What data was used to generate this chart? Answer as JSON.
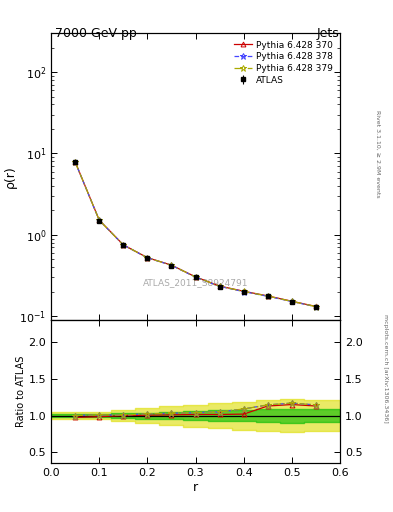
{
  "title": "7000 GeV pp",
  "title_right": "Jets",
  "watermark": "ATLAS_2011_S8924791",
  "rivet_text": "Rivet 3.1.10, ≥ 2.9M events",
  "arxiv_text": "mcplots.cern.ch [arXiv:1306.3436]",
  "ylabel_main": "ρ(r)",
  "ylabel_ratio": "Ratio to ATLAS",
  "xlabel": "r",
  "x_data": [
    0.05,
    0.1,
    0.15,
    0.2,
    0.25,
    0.3,
    0.35,
    0.4,
    0.45,
    0.5,
    0.55
  ],
  "atlas_y": [
    7.8,
    1.5,
    0.75,
    0.52,
    0.42,
    0.3,
    0.23,
    0.2,
    0.175,
    0.15,
    0.13
  ],
  "atlas_yerr_lo": [
    0.3,
    0.06,
    0.03,
    0.025,
    0.02,
    0.015,
    0.012,
    0.01,
    0.009,
    0.008,
    0.007
  ],
  "atlas_yerr_hi": [
    0.3,
    0.06,
    0.03,
    0.025,
    0.02,
    0.015,
    0.012,
    0.01,
    0.009,
    0.008,
    0.007
  ],
  "pythia370_y": [
    7.9,
    1.52,
    0.755,
    0.525,
    0.425,
    0.305,
    0.235,
    0.203,
    0.178,
    0.153,
    0.132
  ],
  "pythia378_y": [
    7.85,
    1.515,
    0.752,
    0.523,
    0.423,
    0.303,
    0.233,
    0.201,
    0.176,
    0.152,
    0.131
  ],
  "pythia379_y": [
    7.87,
    1.517,
    0.753,
    0.524,
    0.424,
    0.304,
    0.234,
    0.202,
    0.177,
    0.1525,
    0.1315
  ],
  "ratio370_y": [
    0.975,
    0.985,
    1.0,
    1.005,
    1.01,
    1.015,
    1.015,
    1.02,
    1.13,
    1.15,
    1.13
  ],
  "ratio378_y": [
    1.0,
    1.01,
    1.005,
    1.025,
    1.03,
    1.04,
    1.05,
    1.09,
    1.145,
    1.17,
    1.145
  ],
  "ratio379_y": [
    1.0,
    1.01,
    1.005,
    1.025,
    1.03,
    1.04,
    1.05,
    1.09,
    1.145,
    1.17,
    1.145
  ],
  "x_edges": [
    0.0,
    0.075,
    0.125,
    0.175,
    0.225,
    0.275,
    0.325,
    0.375,
    0.425,
    0.475,
    0.525,
    0.6
  ],
  "green_band_lo": [
    0.98,
    0.98,
    0.97,
    0.96,
    0.95,
    0.94,
    0.93,
    0.92,
    0.91,
    0.905,
    0.91
  ],
  "green_band_hi": [
    1.02,
    1.02,
    1.03,
    1.04,
    1.05,
    1.06,
    1.07,
    1.08,
    1.09,
    1.095,
    1.09
  ],
  "yellow_band_lo": [
    0.95,
    0.95,
    0.93,
    0.9,
    0.87,
    0.85,
    0.83,
    0.81,
    0.79,
    0.78,
    0.79
  ],
  "yellow_band_hi": [
    1.05,
    1.05,
    1.07,
    1.1,
    1.13,
    1.15,
    1.17,
    1.19,
    1.21,
    1.22,
    1.21
  ],
  "atlas_color": "#000000",
  "pythia370_color": "#cc0000",
  "pythia378_color": "#4444ff",
  "pythia379_color": "#aaaa00",
  "green_band_color": "#00bb00",
  "yellow_band_color": "#dddd00",
  "green_band_alpha": 0.6,
  "yellow_band_alpha": 0.6,
  "xlim": [
    0.0,
    0.6
  ],
  "ylim_main": [
    0.09,
    300
  ],
  "ylim_ratio": [
    0.35,
    2.3
  ],
  "ratio_yticks": [
    0.5,
    1.0,
    1.5,
    2.0
  ],
  "main_yticks": [
    0.1,
    1,
    10,
    100
  ]
}
